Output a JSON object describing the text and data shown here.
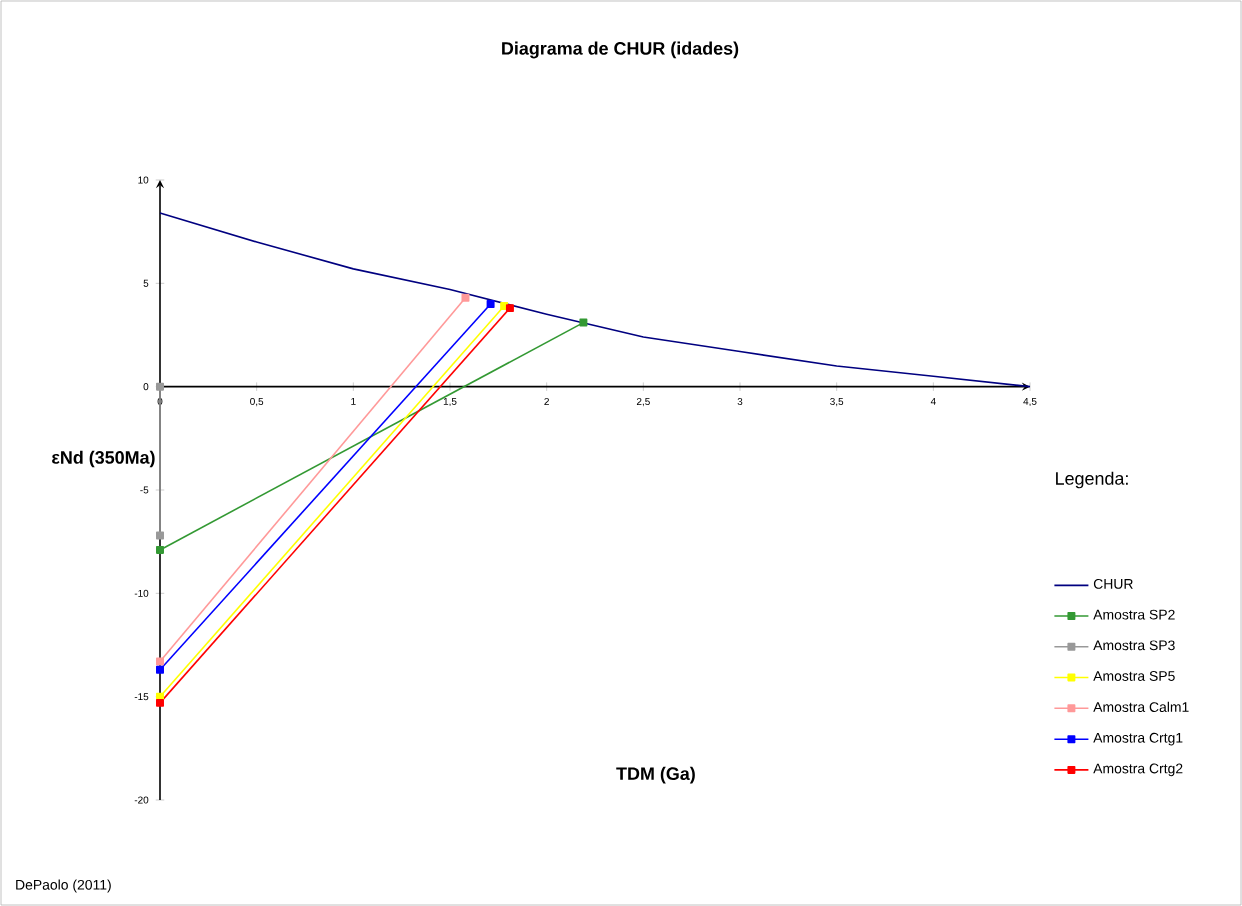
{
  "chart_data": {
    "type": "line",
    "title": "Diagrama de CHUR (idades)",
    "xlabel": "TDM (Ga)",
    "ylabel": "εNd (350Ma)",
    "legend_title": "Legenda:",
    "annotations": [
      "DePaolo (2011)"
    ],
    "xlim": [
      0,
      4.5
    ],
    "ylim": [
      -20,
      10
    ],
    "xticks": [
      0,
      {
        "value": 0.5,
        "label": "0,5"
      },
      1,
      {
        "value": 1.5,
        "label": "1,5"
      },
      2,
      {
        "value": 2.5,
        "label": "2,5"
      },
      3,
      {
        "value": 3.5,
        "label": "3,5"
      },
      4,
      {
        "value": 4.5,
        "label": "4,5"
      }
    ],
    "yticks": [
      -20,
      -15,
      -10,
      -5,
      0,
      5,
      10
    ],
    "legend": "right",
    "marker": "square",
    "line_style": "solid",
    "series": [
      {
        "name": "CHUR",
        "color": "#000080",
        "marker": "none",
        "x": [
          0,
          0.5,
          1,
          1.5,
          2,
          2.5,
          3,
          3.5,
          4,
          4.5
        ],
        "values": [
          8.4,
          7.0,
          5.7,
          4.7,
          3.5,
          2.4,
          1.7,
          1.0,
          0.5,
          0
        ]
      },
      {
        "name": "Amostra SP2",
        "color": "#339933",
        "x": [
          0,
          2.19
        ],
        "values": [
          -7.9,
          3.1
        ]
      },
      {
        "name": "Amostra SP3",
        "color": "#999999",
        "x": [
          0,
          0
        ],
        "values": [
          -7.2,
          0
        ]
      },
      {
        "name": "Amostra SP5",
        "color": "#ffff00",
        "x": [
          0,
          1.78
        ],
        "values": [
          -15.0,
          3.9
        ]
      },
      {
        "name": "Amostra Calm1",
        "color": "#ff9999",
        "x": [
          0,
          1.58
        ],
        "values": [
          -13.3,
          4.3
        ]
      },
      {
        "name": "Amostra Crtg1",
        "color": "#0000ff",
        "x": [
          0,
          1.71
        ],
        "values": [
          -13.7,
          4.0
        ]
      },
      {
        "name": "Amostra Crtg2",
        "color": "#ff0000",
        "x": [
          0,
          1.81
        ],
        "values": [
          -15.3,
          3.8
        ]
      }
    ]
  }
}
